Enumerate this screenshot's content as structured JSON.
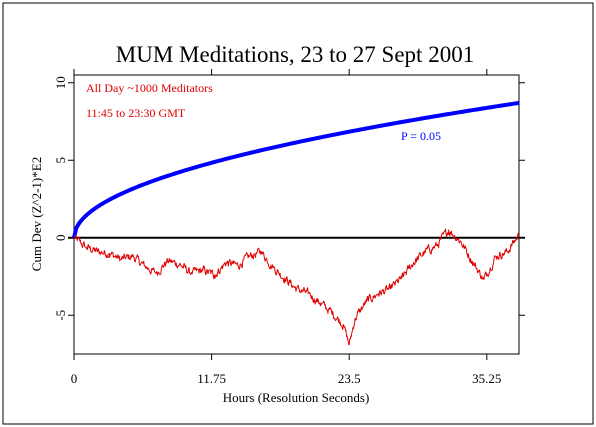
{
  "chart_data": {
    "type": "line",
    "title": "MUM Meditations, 23 to 27 Sept 2001",
    "xlabel": "Hours (Resolution Seconds)",
    "ylabel": "Cum Dev (Z^2-1)*E2",
    "xlim": [
      0,
      38
    ],
    "ylim": [
      -7.5,
      10.5
    ],
    "x_ticks": [
      0,
      11.75,
      23.5,
      35.25
    ],
    "x_tick_labels": [
      "0",
      "11.75",
      "23.5",
      "35.25"
    ],
    "y_ticks": [
      -5,
      0,
      5,
      10
    ],
    "y_tick_labels": [
      "-5",
      "0",
      "5",
      "10"
    ],
    "annotations": [
      "All Day ~1000 Meditators",
      "11:45 to 23:30 GMT",
      "P = 0.05"
    ],
    "reference_line": {
      "y": 0,
      "color": "#000000"
    },
    "p05_envelope": {
      "color": "#0000ff",
      "x_end": 38,
      "y_end": 8.7
    },
    "series": [
      {
        "color": "#e00000",
        "x": [
          0,
          1,
          2,
          3,
          4,
          5,
          6,
          7,
          8,
          9,
          10,
          11,
          12,
          13,
          14,
          15,
          16,
          17,
          18,
          19,
          20,
          21,
          22,
          23,
          23.5,
          24,
          25,
          26,
          27,
          28,
          29,
          30,
          31,
          32,
          33,
          34,
          35,
          36,
          37,
          38
        ],
        "values": [
          0,
          -0.6,
          -0.9,
          -1.0,
          -1.4,
          -1.2,
          -1.8,
          -2.3,
          -1.5,
          -1.7,
          -2.3,
          -2.1,
          -2.4,
          -1.6,
          -1.8,
          -1.2,
          -0.9,
          -1.9,
          -2.6,
          -3.3,
          -3.6,
          -4.2,
          -4.8,
          -5.6,
          -6.9,
          -5.2,
          -4.1,
          -3.6,
          -3.3,
          -2.6,
          -1.6,
          -0.9,
          -0.5,
          0.5,
          -0.2,
          -1.5,
          -2.7,
          -1.2,
          -0.9,
          0.2
        ]
      }
    ]
  }
}
